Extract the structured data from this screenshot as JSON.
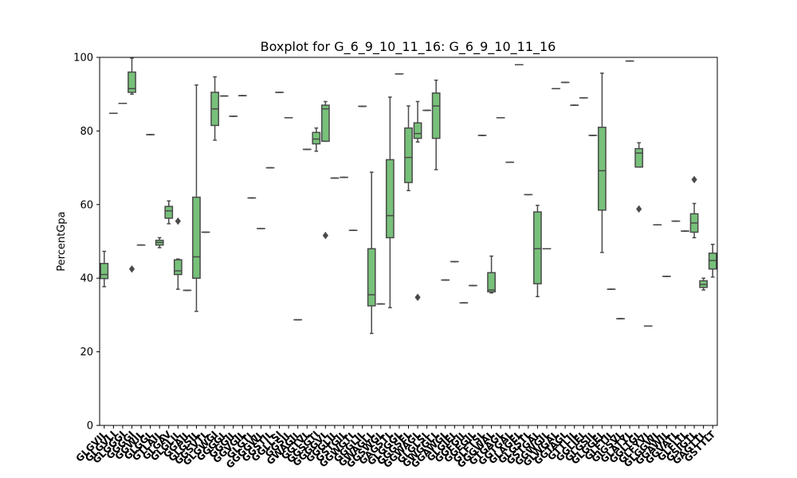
{
  "chart_data": {
    "type": "boxplot",
    "title": "Boxplot for G_6_9_10_11_16: G_6_9_10_11_16",
    "xlabel": "",
    "ylabel": "PercentGpa",
    "ylim": [
      0,
      100
    ],
    "yticks": [
      0,
      20,
      40,
      60,
      80,
      100
    ],
    "grid": false,
    "box_color": "#77c17a",
    "line_color": "#4a4a4a",
    "categories": [
      "GLGVIL",
      "GLGVLI",
      "GLGGGI",
      "GGGGI",
      "GGWIL",
      "GLGGL",
      "GTLAIL",
      "GLGAV",
      "GLGLIL",
      "GGAIL",
      "GLGSIL",
      "GGSVTL",
      "GLGWGI",
      "GGGGL",
      "GGGIL",
      "GGVGIL",
      "GLGTL",
      "GGGGWL",
      "GGSTIL",
      "GGLLSI",
      "GGSIL",
      "GWAGIL",
      "GGTVL",
      "GGSGTI",
      "GGGGVL",
      "GGGLIL",
      "GSTGIL",
      "GGWGTL",
      "GGGLIL",
      "GWAGLL",
      "GGSWGL",
      "GAGSTL",
      "GLGGGL",
      "GGGSEL",
      "GGWAGL",
      "GLGLSL",
      "GWGGLL",
      "GGAWGL",
      "GLGIEL",
      "GGFGIL",
      "GGEGIL",
      "GLFTSL",
      "GGGWAL",
      "GTGAGL",
      "GGTGAL",
      "GLAGEL",
      "GLGSTL",
      "GSTGAL",
      "GGWGIL",
      "GLWGAL",
      "GGTAGL",
      "GTTLIL",
      "GGLIEL",
      "GLGSIL",
      "GLGGEL",
      "GLFTIL",
      "GIGSVL",
      "GLATYL",
      "GGLTGL",
      "GLFYVL",
      "GLGGWL",
      "GGAWIL",
      "GGVATL",
      "GLFLTL",
      "GSIGTL",
      "GAGTTL",
      "GSTTLT"
    ],
    "boxes": [
      {
        "whislo": 37.7,
        "q1": 39.9,
        "med": 41.0,
        "q3": 44.0,
        "whishi": 47.3,
        "fliers": []
      },
      {
        "whislo": 84.8,
        "q1": 84.8,
        "med": 84.8,
        "q3": 84.8,
        "whishi": 84.8,
        "fliers": []
      },
      {
        "whislo": 87.5,
        "q1": 87.5,
        "med": 87.5,
        "q3": 87.5,
        "whishi": 87.5,
        "fliers": []
      },
      {
        "whislo": 90.0,
        "q1": 90.5,
        "med": 91.5,
        "q3": 96.0,
        "whishi": 99.8,
        "fliers": [
          42.5
        ]
      },
      {
        "whislo": 49.0,
        "q1": 49.0,
        "med": 49.0,
        "q3": 49.0,
        "whishi": 49.0,
        "fliers": []
      },
      {
        "whislo": 79.0,
        "q1": 79.0,
        "med": 79.0,
        "q3": 79.0,
        "whishi": 79.0,
        "fliers": []
      },
      {
        "whislo": 48.3,
        "q1": 49.0,
        "med": 49.7,
        "q3": 50.3,
        "whishi": 51.0,
        "fliers": []
      },
      {
        "whislo": 54.8,
        "q1": 56.3,
        "med": 58.3,
        "q3": 59.5,
        "whishi": 61.0,
        "fliers": []
      },
      {
        "whislo": 37.0,
        "q1": 41.0,
        "med": 42.0,
        "q3": 45.0,
        "whishi": 45.2,
        "fliers": [
          55.5
        ]
      },
      {
        "whislo": 36.7,
        "q1": 36.7,
        "med": 36.7,
        "q3": 36.7,
        "whishi": 36.7,
        "fliers": []
      },
      {
        "whislo": 31.0,
        "q1": 40.0,
        "med": 45.8,
        "q3": 62.0,
        "whishi": 92.5,
        "fliers": []
      },
      {
        "whislo": 52.5,
        "q1": 52.5,
        "med": 52.5,
        "q3": 52.5,
        "whishi": 52.5,
        "fliers": []
      },
      {
        "whislo": 77.5,
        "q1": 81.5,
        "med": 86.0,
        "q3": 90.5,
        "whishi": 94.7,
        "fliers": []
      },
      {
        "whislo": 89.5,
        "q1": 89.5,
        "med": 89.5,
        "q3": 89.5,
        "whishi": 89.5,
        "fliers": []
      },
      {
        "whislo": 84.0,
        "q1": 84.0,
        "med": 84.0,
        "q3": 84.0,
        "whishi": 84.0,
        "fliers": []
      },
      {
        "whislo": 89.6,
        "q1": 89.6,
        "med": 89.6,
        "q3": 89.6,
        "whishi": 89.6,
        "fliers": []
      },
      {
        "whislo": 61.8,
        "q1": 61.8,
        "med": 61.8,
        "q3": 61.8,
        "whishi": 61.8,
        "fliers": []
      },
      {
        "whislo": 53.5,
        "q1": 53.5,
        "med": 53.5,
        "q3": 53.5,
        "whishi": 53.5,
        "fliers": []
      },
      {
        "whislo": 70.0,
        "q1": 70.0,
        "med": 70.0,
        "q3": 70.0,
        "whishi": 70.0,
        "fliers": []
      },
      {
        "whislo": 90.5,
        "q1": 90.5,
        "med": 90.5,
        "q3": 90.5,
        "whishi": 90.5,
        "fliers": []
      },
      {
        "whislo": 83.6,
        "q1": 83.6,
        "med": 83.6,
        "q3": 83.6,
        "whishi": 83.6,
        "fliers": []
      },
      {
        "whislo": 28.7,
        "q1": 28.7,
        "med": 28.7,
        "q3": 28.7,
        "whishi": 28.7,
        "fliers": []
      },
      {
        "whislo": 75.0,
        "q1": 75.0,
        "med": 75.0,
        "q3": 75.0,
        "whishi": 75.0,
        "fliers": []
      },
      {
        "whislo": 74.5,
        "q1": 76.5,
        "med": 77.8,
        "q3": 79.6,
        "whishi": 80.8,
        "fliers": []
      },
      {
        "whislo": 77.2,
        "q1": 77.2,
        "med": 86.0,
        "q3": 87.0,
        "whishi": 88.0,
        "fliers": [
          51.6
        ]
      },
      {
        "whislo": 67.2,
        "q1": 67.2,
        "med": 67.2,
        "q3": 67.2,
        "whishi": 67.2,
        "fliers": []
      },
      {
        "whislo": 67.4,
        "q1": 67.4,
        "med": 67.4,
        "q3": 67.4,
        "whishi": 67.4,
        "fliers": []
      },
      {
        "whislo": 53.0,
        "q1": 53.0,
        "med": 53.0,
        "q3": 53.0,
        "whishi": 53.0,
        "fliers": []
      },
      {
        "whislo": 86.7,
        "q1": 86.7,
        "med": 86.7,
        "q3": 86.7,
        "whishi": 86.7,
        "fliers": []
      },
      {
        "whislo": 25.0,
        "q1": 32.5,
        "med": 35.5,
        "q3": 48.0,
        "whishi": 68.8,
        "fliers": []
      },
      {
        "whislo": 33.0,
        "q1": 33.0,
        "med": 33.0,
        "q3": 33.0,
        "whishi": 33.0,
        "fliers": []
      },
      {
        "whislo": 32.0,
        "q1": 51.0,
        "med": 57.0,
        "q3": 72.2,
        "whishi": 89.2,
        "fliers": []
      },
      {
        "whislo": 95.5,
        "q1": 95.5,
        "med": 95.5,
        "q3": 95.5,
        "whishi": 95.5,
        "fliers": []
      },
      {
        "whislo": 63.8,
        "q1": 66.0,
        "med": 72.8,
        "q3": 80.8,
        "whishi": 86.8,
        "fliers": []
      },
      {
        "whislo": 77.0,
        "q1": 78.0,
        "med": 79.3,
        "q3": 82.2,
        "whishi": 88.0,
        "fliers": [
          34.8
        ]
      },
      {
        "whislo": 85.6,
        "q1": 85.6,
        "med": 85.6,
        "q3": 85.6,
        "whishi": 85.6,
        "fliers": []
      },
      {
        "whislo": 69.5,
        "q1": 78.0,
        "med": 86.8,
        "q3": 90.3,
        "whishi": 93.8,
        "fliers": []
      },
      {
        "whislo": 39.5,
        "q1": 39.5,
        "med": 39.5,
        "q3": 39.5,
        "whishi": 39.5,
        "fliers": []
      },
      {
        "whislo": 44.5,
        "q1": 44.5,
        "med": 44.5,
        "q3": 44.5,
        "whishi": 44.5,
        "fliers": []
      },
      {
        "whislo": 33.3,
        "q1": 33.3,
        "med": 33.3,
        "q3": 33.3,
        "whishi": 33.3,
        "fliers": []
      },
      {
        "whislo": 38.0,
        "q1": 38.0,
        "med": 38.0,
        "q3": 38.0,
        "whishi": 38.0,
        "fliers": []
      },
      {
        "whislo": 78.8,
        "q1": 78.8,
        "med": 78.8,
        "q3": 78.8,
        "whishi": 78.8,
        "fliers": []
      },
      {
        "whislo": 36.0,
        "q1": 36.3,
        "med": 36.8,
        "q3": 41.5,
        "whishi": 46.0,
        "fliers": []
      },
      {
        "whislo": 83.6,
        "q1": 83.6,
        "med": 83.6,
        "q3": 83.6,
        "whishi": 83.6,
        "fliers": []
      },
      {
        "whislo": 71.5,
        "q1": 71.5,
        "med": 71.5,
        "q3": 71.5,
        "whishi": 71.5,
        "fliers": []
      },
      {
        "whislo": 98.0,
        "q1": 98.0,
        "med": 98.0,
        "q3": 98.0,
        "whishi": 98.0,
        "fliers": []
      },
      {
        "whislo": 62.7,
        "q1": 62.7,
        "med": 62.7,
        "q3": 62.7,
        "whishi": 62.7,
        "fliers": []
      },
      {
        "whislo": 35.0,
        "q1": 38.5,
        "med": 48.0,
        "q3": 58.0,
        "whishi": 59.8,
        "fliers": []
      },
      {
        "whislo": 48.0,
        "q1": 48.0,
        "med": 48.0,
        "q3": 48.0,
        "whishi": 48.0,
        "fliers": []
      },
      {
        "whislo": 91.5,
        "q1": 91.5,
        "med": 91.5,
        "q3": 91.5,
        "whishi": 91.5,
        "fliers": []
      },
      {
        "whislo": 93.2,
        "q1": 93.2,
        "med": 93.2,
        "q3": 93.2,
        "whishi": 93.2,
        "fliers": []
      },
      {
        "whislo": 87.0,
        "q1": 87.0,
        "med": 87.0,
        "q3": 87.0,
        "whishi": 87.0,
        "fliers": []
      },
      {
        "whislo": 89.0,
        "q1": 89.0,
        "med": 89.0,
        "q3": 89.0,
        "whishi": 89.0,
        "fliers": []
      },
      {
        "whislo": 78.8,
        "q1": 78.8,
        "med": 78.8,
        "q3": 78.8,
        "whishi": 78.8,
        "fliers": []
      },
      {
        "whislo": 47.0,
        "q1": 58.5,
        "med": 69.2,
        "q3": 81.0,
        "whishi": 95.7,
        "fliers": []
      },
      {
        "whislo": 37.0,
        "q1": 37.0,
        "med": 37.0,
        "q3": 37.0,
        "whishi": 37.0,
        "fliers": []
      },
      {
        "whislo": 29.0,
        "q1": 29.0,
        "med": 29.0,
        "q3": 29.0,
        "whishi": 29.0,
        "fliers": []
      },
      {
        "whislo": 99.0,
        "q1": 99.0,
        "med": 99.0,
        "q3": 99.0,
        "whishi": 99.0,
        "fliers": []
      },
      {
        "whislo": 70.2,
        "q1": 70.2,
        "med": 74.0,
        "q3": 75.2,
        "whishi": 76.8,
        "fliers": [
          58.8
        ]
      },
      {
        "whislo": 27.0,
        "q1": 27.0,
        "med": 27.0,
        "q3": 27.0,
        "whishi": 27.0,
        "fliers": []
      },
      {
        "whislo": 54.5,
        "q1": 54.5,
        "med": 54.5,
        "q3": 54.5,
        "whishi": 54.5,
        "fliers": []
      },
      {
        "whislo": 40.5,
        "q1": 40.5,
        "med": 40.5,
        "q3": 40.5,
        "whishi": 40.5,
        "fliers": []
      },
      {
        "whislo": 55.5,
        "q1": 55.5,
        "med": 55.5,
        "q3": 55.5,
        "whishi": 55.5,
        "fliers": []
      },
      {
        "whislo": 52.8,
        "q1": 52.8,
        "med": 52.8,
        "q3": 52.8,
        "whishi": 52.8,
        "fliers": []
      },
      {
        "whislo": 51.0,
        "q1": 52.5,
        "med": 55.0,
        "q3": 57.5,
        "whishi": 60.3,
        "fliers": [
          66.8
        ]
      },
      {
        "whislo": 36.8,
        "q1": 37.5,
        "med": 38.3,
        "q3": 39.3,
        "whishi": 40.0,
        "fliers": []
      },
      {
        "whislo": 40.3,
        "q1": 42.5,
        "med": 44.8,
        "q3": 46.8,
        "whishi": 49.2,
        "fliers": []
      }
    ]
  }
}
